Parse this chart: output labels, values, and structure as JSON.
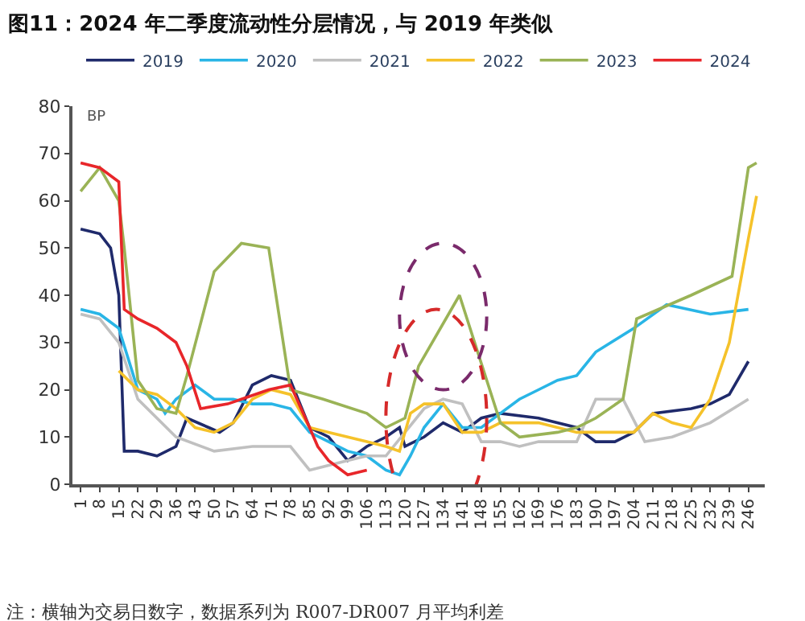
{
  "chart_data": {
    "type": "line",
    "title": "图11：2024 年二季度流动性分层情况，与 2019 年类似",
    "ylabel": "BP",
    "annotations": [
      "注：横轴为交易日数字，数据系列为 R007-DR007 月平均利差"
    ],
    "xlim": [
      -2,
      252
    ],
    "xticks": [
      1,
      8,
      15,
      22,
      29,
      36,
      43,
      50,
      57,
      64,
      71,
      78,
      85,
      92,
      99,
      106,
      113,
      120,
      127,
      134,
      141,
      148,
      155,
      162,
      169,
      176,
      183,
      190,
      197,
      204,
      211,
      218,
      225,
      232,
      239,
      246
    ],
    "ylim": [
      0,
      80
    ],
    "yticks": [
      0,
      10,
      20,
      30,
      40,
      50,
      60,
      70,
      80
    ],
    "legend": "top",
    "line_style": "solid",
    "marker": "none",
    "series": [
      {
        "name": "2019",
        "color": "#1f2a6b",
        "x": [
          1,
          8,
          12,
          15,
          17,
          22,
          29,
          36,
          40,
          48,
          52,
          57,
          64,
          71,
          78,
          85,
          92,
          99,
          106,
          113,
          118,
          120,
          127,
          134,
          141,
          148,
          155,
          169,
          183,
          190,
          197,
          204,
          211,
          225,
          232,
          239,
          246
        ],
        "values": [
          54,
          53,
          50,
          40,
          7,
          7,
          6,
          8,
          14,
          12,
          11,
          13,
          21,
          23,
          22,
          12,
          10,
          5,
          8,
          10,
          12,
          8,
          10,
          13,
          11,
          14,
          15,
          14,
          12,
          9,
          9,
          11,
          15,
          16,
          17,
          19,
          26
        ]
      },
      {
        "name": "2020",
        "color": "#29b5e6",
        "x": [
          1,
          8,
          15,
          22,
          29,
          32,
          36,
          43,
          50,
          57,
          64,
          71,
          78,
          85,
          92,
          99,
          106,
          113,
          118,
          122,
          127,
          134,
          141,
          148,
          155,
          162,
          169,
          176,
          183,
          190,
          204,
          216,
          232,
          246
        ],
        "values": [
          37,
          36,
          33,
          20,
          18,
          15,
          18,
          21,
          18,
          18,
          17,
          17,
          16,
          11,
          9,
          7,
          6,
          3,
          2,
          6,
          12,
          17,
          12,
          12,
          15,
          18,
          20,
          22,
          23,
          28,
          33,
          38,
          36,
          37
        ]
      },
      {
        "name": "2021",
        "color": "#c0c0c0",
        "x": [
          1,
          8,
          15,
          22,
          36,
          50,
          64,
          78,
          85,
          92,
          99,
          106,
          113,
          120,
          127,
          134,
          141,
          148,
          155,
          162,
          169,
          183,
          190,
          200,
          208,
          218,
          232,
          246
        ],
        "values": [
          36,
          35,
          30,
          18,
          10,
          7,
          8,
          8,
          3,
          4,
          5,
          6,
          6,
          11,
          16,
          18,
          17,
          9,
          9,
          8,
          9,
          9,
          18,
          18,
          9,
          10,
          13,
          18
        ]
      },
      {
        "name": "2022",
        "color": "#f5c22a",
        "x": [
          15,
          22,
          29,
          36,
          43,
          50,
          57,
          64,
          71,
          78,
          85,
          92,
          99,
          106,
          113,
          118,
          122,
          127,
          134,
          141,
          148,
          155,
          169,
          183,
          190,
          204,
          211,
          218,
          225,
          232,
          239,
          246,
          249
        ],
        "values": [
          24,
          20,
          19,
          16,
          12,
          11,
          13,
          18,
          20,
          19,
          12,
          11,
          10,
          9,
          8,
          7,
          15,
          17,
          17,
          11,
          11,
          13,
          13,
          11,
          11,
          11,
          15,
          13,
          12,
          18,
          30,
          52,
          61
        ]
      },
      {
        "name": "2023",
        "color": "#9ab356",
        "x": [
          1,
          8,
          15,
          17,
          22,
          29,
          36,
          40,
          50,
          60,
          70,
          78,
          90,
          106,
          113,
          120,
          125,
          140,
          155,
          162,
          176,
          183,
          190,
          200,
          205,
          225,
          240,
          246,
          249
        ],
        "values": [
          62,
          67,
          60,
          50,
          22,
          16,
          15,
          23,
          45,
          51,
          50,
          20,
          18,
          15,
          12,
          14,
          25,
          40,
          13,
          10,
          11,
          12,
          14,
          18,
          35,
          40,
          44,
          67,
          68
        ]
      },
      {
        "name": "2024",
        "color": "#e8262a",
        "x": [
          1,
          8,
          15,
          17,
          22,
          29,
          36,
          40,
          45,
          55,
          60,
          70,
          78,
          85,
          88,
          92,
          99,
          106
        ],
        "values": [
          68,
          67,
          64,
          37,
          35,
          33,
          30,
          25,
          16,
          17,
          18,
          20,
          21,
          12,
          8,
          5,
          2,
          3
        ]
      }
    ]
  }
}
